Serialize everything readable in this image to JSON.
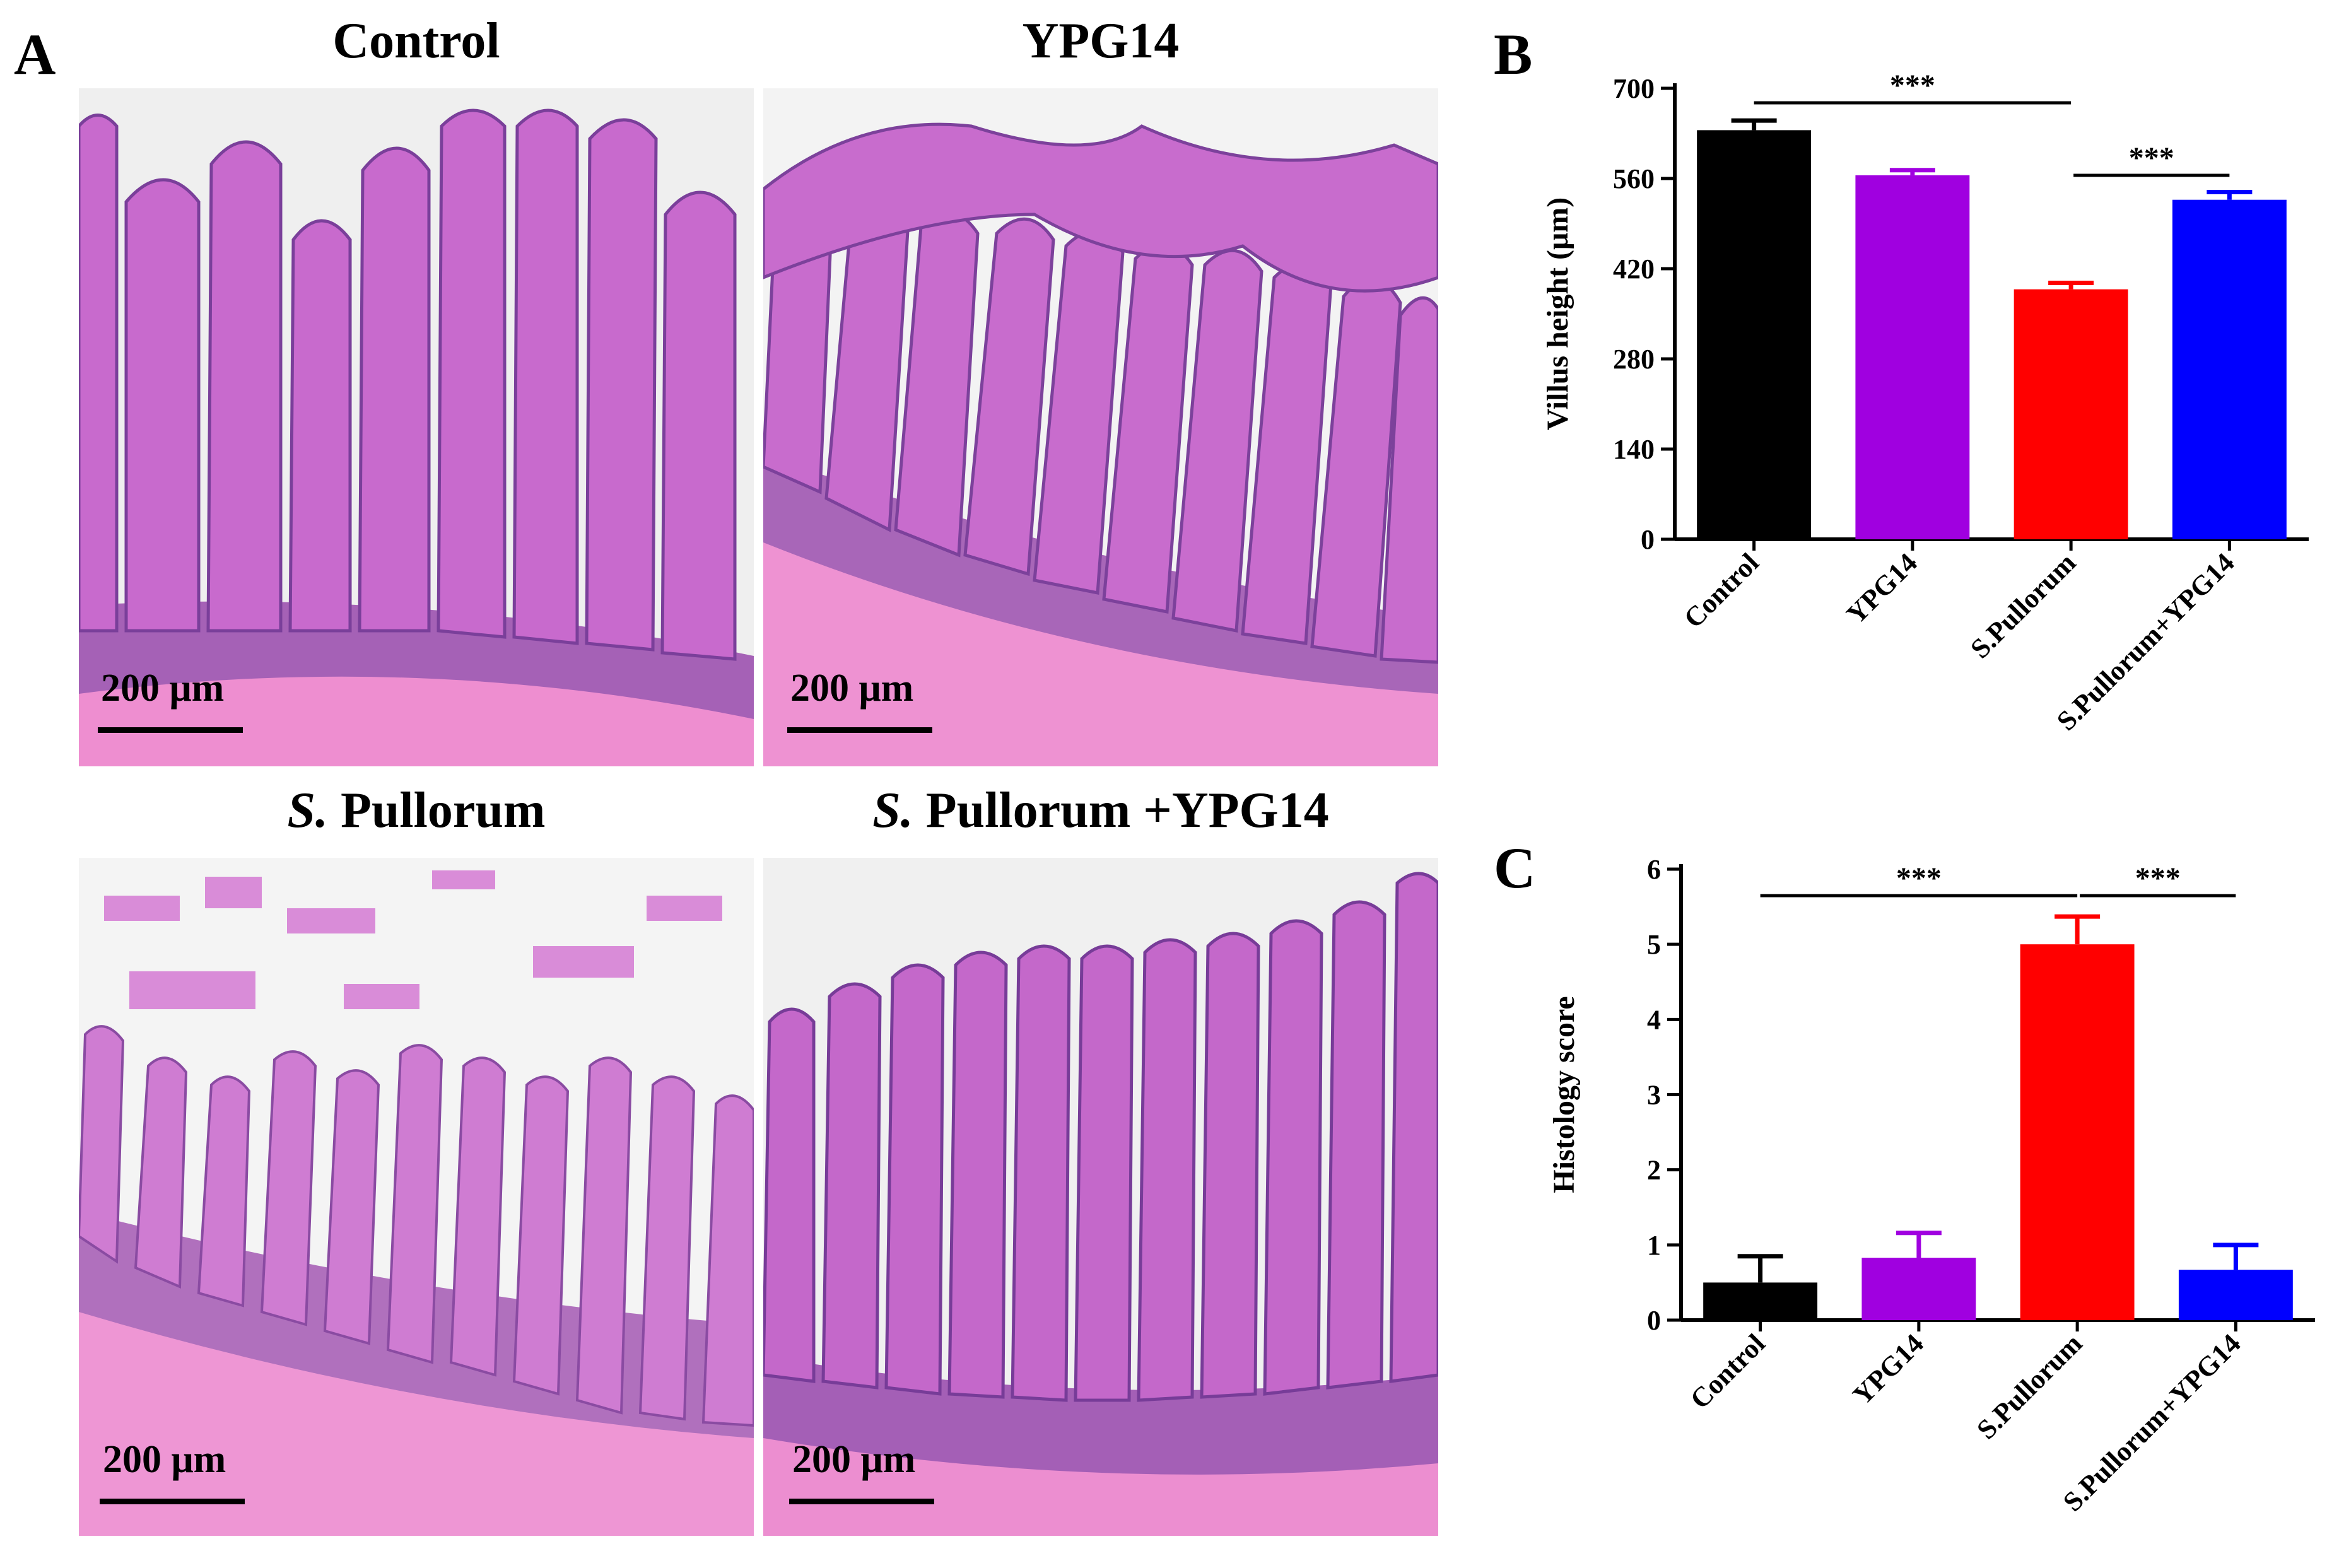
{
  "figure": {
    "panel_labels": {
      "a": "A",
      "b": "B",
      "c": "C"
    },
    "micrographs": [
      {
        "title_italic": "",
        "title_rest": "Control",
        "scale_label": "200 μm"
      },
      {
        "title_italic": "",
        "title_rest": "YPG14",
        "scale_label": "200 μm"
      },
      {
        "title_italic": "S.",
        "title_rest": " Pullorum",
        "scale_label": "200 μm"
      },
      {
        "title_italic": "S.",
        "title_rest": " Pullorum +YPG14",
        "scale_label": "200 μm"
      }
    ]
  },
  "chart_data": [
    {
      "panel": "B",
      "type": "bar",
      "categories": [
        "Control",
        "YPG14",
        "S.Pullorum",
        "S.Pullorum+YPG14"
      ],
      "values": [
        635,
        565,
        388,
        527
      ],
      "errors": [
        15,
        8,
        10,
        12
      ],
      "colors": [
        "#000000",
        "#a000e0",
        "#ff0000",
        "#0000ff"
      ],
      "ylabel": "Villus height (μm)",
      "ylim": [
        0,
        700
      ],
      "yticks": [
        0,
        140,
        280,
        420,
        560,
        700
      ],
      "significance": [
        {
          "from": 0,
          "to": 2,
          "label": "***"
        },
        {
          "from": 2,
          "to": 3,
          "label": "***"
        }
      ],
      "grid": false
    },
    {
      "panel": "C",
      "type": "bar",
      "categories": [
        "Control",
        "YPG14",
        "S.Pullorum",
        "S.Pullorum+YPG14"
      ],
      "values": [
        0.5,
        0.83,
        5.0,
        0.67
      ],
      "errors": [
        0.35,
        0.33,
        0.37,
        0.33
      ],
      "colors": [
        "#000000",
        "#a000e0",
        "#ff0000",
        "#0000ff"
      ],
      "ylabel": "Histology score",
      "ylim": [
        0,
        6
      ],
      "yticks": [
        0,
        1,
        2,
        3,
        4,
        5,
        6
      ],
      "significance": [
        {
          "from": 0,
          "to": 2,
          "label": "***"
        },
        {
          "from": 2,
          "to": 3,
          "label": "***"
        }
      ],
      "grid": false
    }
  ]
}
